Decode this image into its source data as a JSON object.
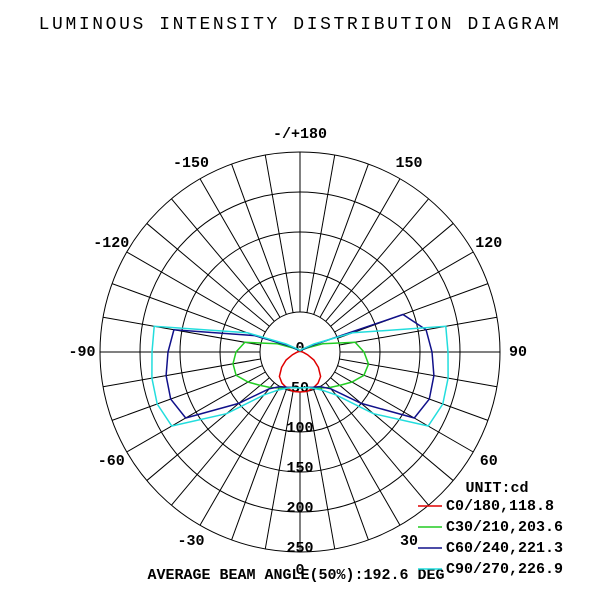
{
  "chart_data": {
    "type": "polar",
    "title": "LUMINOUS INTENSITY DISTRIBUTION DIAGRAM",
    "unit_label": "UNIT:cd",
    "footer": "AVERAGE BEAM ANGLE(50%):192.6 DEG",
    "x": [
      -180,
      -170,
      -160,
      -150,
      -140,
      -130,
      -120,
      -110,
      -100,
      -90,
      -80,
      -70,
      -60,
      -50,
      -40,
      -30,
      -20,
      -10,
      0,
      10,
      20,
      30,
      40,
      50,
      60,
      70,
      80,
      90,
      100,
      110,
      120,
      130,
      140,
      150,
      160,
      170,
      180
    ],
    "series": [
      {
        "name": "C0/180,118.8",
        "color": "#e00000",
        "values": [
          1,
          1,
          1,
          1,
          1,
          1,
          1,
          2,
          2,
          3,
          5,
          10,
          20,
          30,
          40,
          45,
          48,
          50,
          50,
          50,
          48,
          45,
          40,
          30,
          20,
          10,
          5,
          3,
          2,
          2,
          1,
          1,
          1,
          1,
          1,
          1,
          1
        ]
      },
      {
        "name": "C30/210,203.6",
        "color": "#22cc22",
        "values": [
          2,
          2,
          2,
          3,
          5,
          5,
          10,
          30,
          70,
          80,
          85,
          85,
          75,
          65,
          58,
          52,
          48,
          45,
          45,
          45,
          48,
          52,
          58,
          65,
          75,
          85,
          87,
          80,
          70,
          30,
          10,
          5,
          5,
          3,
          2,
          2,
          2
        ]
      },
      {
        "name": "C60/240,221.3",
        "color": "#10108a",
        "values": [
          2,
          2,
          2,
          3,
          4,
          5,
          15,
          60,
          160,
          165,
          170,
          172,
          165,
          100,
          60,
          50,
          47,
          45,
          45,
          45,
          47,
          50,
          60,
          100,
          165,
          172,
          170,
          165,
          160,
          137,
          15,
          5,
          4,
          3,
          2,
          2,
          2
        ]
      },
      {
        "name": "C90/270,226.9",
        "color": "#22dddd",
        "values": [
          2,
          2,
          2,
          3,
          5,
          8,
          20,
          70,
          185,
          185,
          188,
          190,
          185,
          120,
          70,
          55,
          48,
          45,
          45,
          45,
          48,
          55,
          70,
          120,
          185,
          190,
          188,
          185,
          185,
          70,
          20,
          8,
          5,
          3,
          2,
          2,
          2
        ]
      }
    ],
    "rlim": [
      0,
      250
    ],
    "rticks": [
      0,
      50,
      100,
      150,
      200,
      250
    ],
    "xticks": [
      {
        "value": 180,
        "label": "-/+180"
      },
      -150,
      150,
      -120,
      120,
      -90,
      90,
      -60,
      60,
      -30,
      30,
      0
    ]
  }
}
